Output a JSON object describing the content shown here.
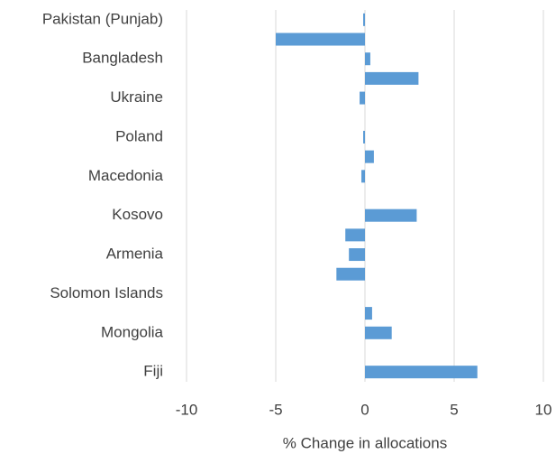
{
  "chart_data": {
    "type": "barh",
    "xlabel": "% Change in allocations",
    "categories": [
      "Pakistan (Punjab)",
      null,
      "Bangladesh",
      null,
      "Ukraine",
      null,
      "Poland",
      null,
      "Macedonia",
      null,
      "Kosovo",
      null,
      "Armenia",
      null,
      "Solomon Islands",
      null,
      "Mongolia",
      null,
      "Fiji"
    ],
    "values": [
      -0.1,
      -5,
      0.3,
      3.0,
      -0.3,
      0,
      -0.1,
      0.5,
      -0.2,
      0,
      2.9,
      -1.1,
      -0.9,
      -1.6,
      0,
      0.4,
      1.5,
      0,
      6.3
    ],
    "color": "#5b9bd5",
    "xlim": [
      -10,
      10
    ],
    "xticks": [
      -10,
      -5,
      0,
      5,
      10
    ],
    "grid": true
  }
}
